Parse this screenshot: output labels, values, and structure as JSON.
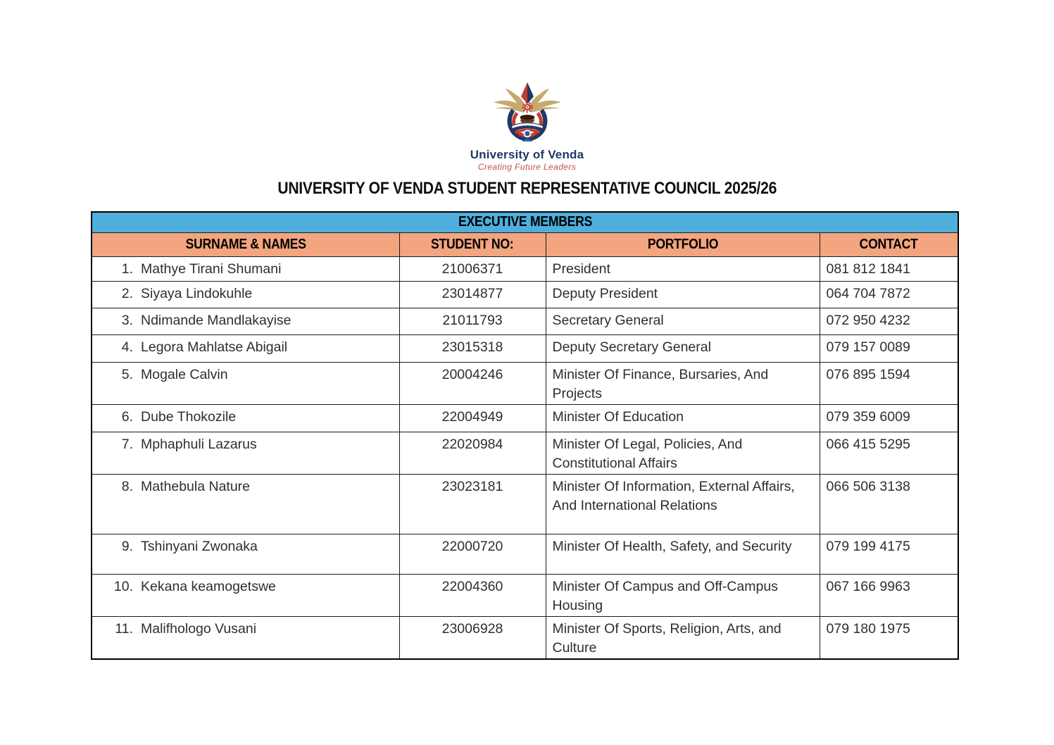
{
  "logo": {
    "name": "University of Venda",
    "tagline": "Creating Future Leaders"
  },
  "title": "UNIVERSITY OF VENDA STUDENT REPRESENTATIVE COUNCIL 2025/26",
  "table": {
    "section_header": "EXECUTIVE MEMBERS",
    "columns": [
      "SURNAME & NAMES",
      "STUDENT NO:",
      "PORTFOLIO",
      "CONTACT"
    ],
    "rows": [
      {
        "num": "1.",
        "name": "Mathye Tirani Shumani",
        "student_no": "21006371",
        "portfolio": "President",
        "contact": "081 812 1841"
      },
      {
        "num": "2.",
        "name": "Siyaya Lindokuhle",
        "student_no": "23014877",
        "portfolio": "Deputy President",
        "contact": "064 704 7872"
      },
      {
        "num": "3.",
        "name": "Ndimande Mandlakayise",
        "student_no": "21011793",
        "portfolio": "Secretary General",
        "contact": "072 950 4232"
      },
      {
        "num": "4.",
        "name": "Legora Mahlatse Abigail",
        "student_no": "23015318",
        "portfolio": "Deputy Secretary General",
        "contact": "079 157 0089"
      },
      {
        "num": "5.",
        "name": "Mogale Calvin",
        "student_no": "20004246",
        "portfolio": "Minister Of Finance, Bursaries, And Projects",
        "contact": "076 895 1594"
      },
      {
        "num": "6.",
        "name": "Dube Thokozile",
        "student_no": "22004949",
        "portfolio": "Minister Of Education",
        "contact": "079 359 6009"
      },
      {
        "num": "7.",
        "name": "Mphaphuli Lazarus",
        "student_no": "22020984",
        "portfolio": "Minister Of Legal, Policies, And Constitutional Affairs",
        "contact": "066 415 5295"
      },
      {
        "num": "8.",
        "name": "Mathebula Nature",
        "student_no": "23023181",
        "portfolio": "Minister Of Information, External Affairs, And International Relations",
        "contact": "066 506 3138"
      },
      {
        "num": "9.",
        "name": "Tshinyani Zwonaka",
        "student_no": "22000720",
        "portfolio": "Minister Of Health, Safety, and Security",
        "contact": "079 199 4175"
      },
      {
        "num": "10.",
        "name": "Kekana keamogetswe",
        "student_no": "22004360",
        "portfolio": "Minister Of Campus and Off-Campus Housing",
        "contact": "067 166 9963"
      },
      {
        "num": "11.",
        "name": "Malifhologo Vusani",
        "student_no": "23006928",
        "portfolio": "Minister Of Sports, Religion, Arts, and Culture",
        "contact": "079 180 1975"
      }
    ]
  },
  "colors": {
    "section_header_bg": "#4FAEDC",
    "column_header_bg": "#F2A57E",
    "logo_navy": "#1F3864",
    "logo_red": "#C43C2D",
    "logo_gold": "#C4AA6E"
  }
}
